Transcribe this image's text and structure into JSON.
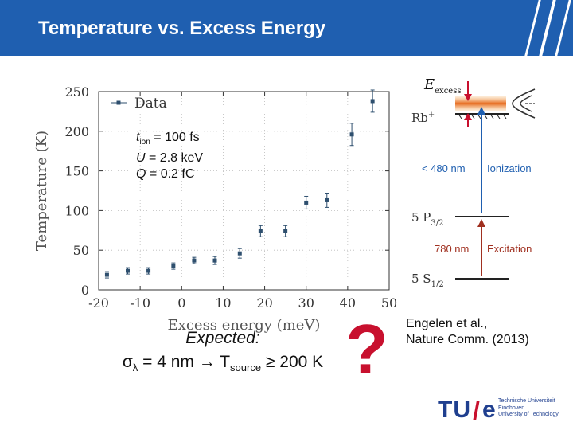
{
  "slide": {
    "title": "Temperature vs. Excess Energy",
    "header_color": "#1f5fb0"
  },
  "params": {
    "t_main": "t",
    "t_sub": "ion",
    "t_rest": " = 100 fs",
    "U_var": "U",
    "U_rest": " = 2.8 keV",
    "Q_var": "Q",
    "Q_rest": " = 0.2 fC"
  },
  "expected": {
    "title": "Expected:",
    "sigma_part": "σ",
    "lambda_sub": "λ",
    "mid": " = 4 nm → T",
    "source_sub": "source",
    "end": " ≥ 200 K"
  },
  "question_mark": "?",
  "reference": {
    "line1": "Engelen et al.,",
    "line2": "Nature Comm. (2013)"
  },
  "logo": {
    "tu": "TU",
    "slash": "/",
    "e": "e",
    "lines": [
      "Technische Universiteit",
      "Eindhoven",
      "University of Technology"
    ]
  },
  "energy_diagram": {
    "e_excess_main": "E",
    "e_excess_sub": "excess",
    "rb_label": "Rb",
    "rb_sup": "+",
    "ionization_wavelength": "< 480 nm",
    "ionization_label": "Ionization",
    "p_state_main": "5 P",
    "p_state_sub": "3/2",
    "excitation_wavelength": "780 nm",
    "excitation_label": "Excitation",
    "s_state_main": "5 S",
    "s_state_sub": "1/2",
    "ionization_color": "#1f5fb0",
    "excitation_color": "#a03020"
  },
  "chart_data": {
    "type": "scatter",
    "xlabel": "Excess energy (meV)",
    "ylabel": "Temperature (K)",
    "xlim": [
      -20,
      50
    ],
    "ylim": [
      0,
      250
    ],
    "x_ticks": [
      -20,
      -10,
      0,
      10,
      20,
      30,
      40,
      50
    ],
    "y_ticks": [
      0,
      50,
      100,
      150,
      200,
      250
    ],
    "x_tick_labels": [
      "-20",
      "-10",
      "0",
      "10",
      "20",
      "30",
      "40",
      "50"
    ],
    "y_tick_labels": [
      "0",
      "50",
      "100",
      "150",
      "200",
      "250"
    ],
    "grid": true,
    "legend": "top-left",
    "marker_color": "#2e4f6e",
    "series": [
      {
        "name": "Data",
        "x": [
          -18,
          -13,
          -8,
          -2,
          3,
          8,
          14,
          19,
          25,
          30,
          35,
          41,
          46
        ],
        "y": [
          19,
          24,
          24,
          30,
          37,
          37,
          46,
          74,
          74,
          110,
          113,
          196,
          238
        ],
        "yerr": [
          4,
          4,
          4,
          4,
          4,
          5,
          6,
          7,
          7,
          8,
          9,
          14,
          14
        ]
      }
    ]
  }
}
